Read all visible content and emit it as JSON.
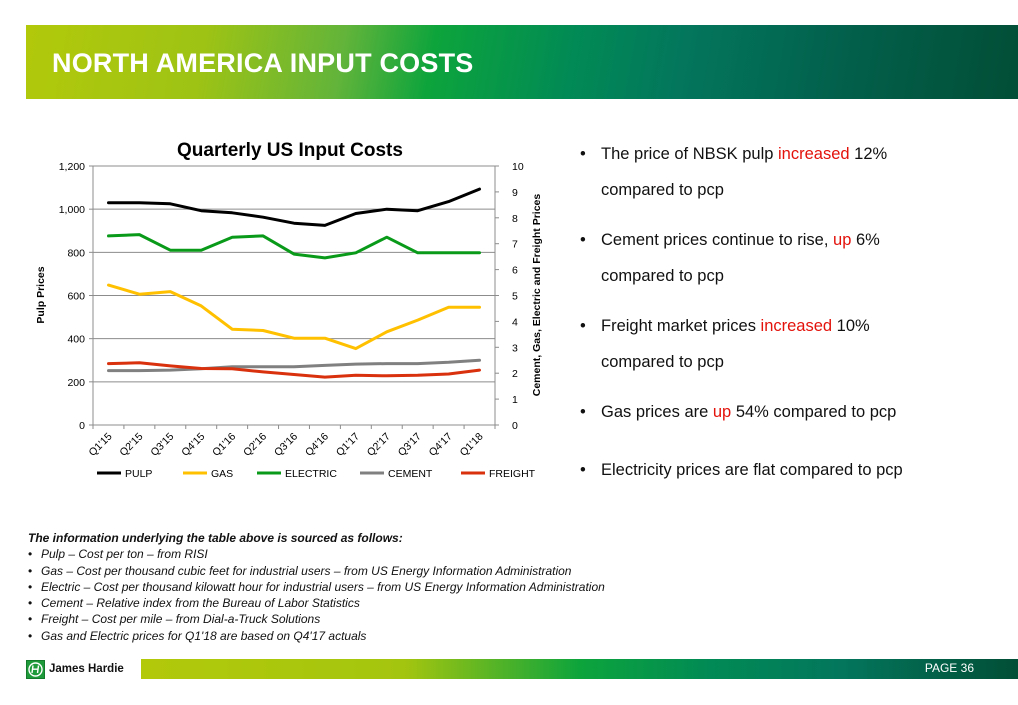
{
  "header": {
    "title": "NORTH AMERICA INPUT COSTS"
  },
  "chart_data": {
    "type": "line",
    "title": "Quarterly US Input Costs",
    "xlabel": "",
    "ylabel": "Pulp Prices",
    "y2label": "Cement, Gas, Electric and Freight Prices",
    "ylim": [
      0,
      1200
    ],
    "y2lim": [
      0,
      10
    ],
    "yticks": [
      "0",
      "200",
      "400",
      "600",
      "800",
      "1,000",
      "1,200"
    ],
    "y2ticks": [
      "0",
      "1",
      "2",
      "3",
      "4",
      "5",
      "6",
      "7",
      "8",
      "9",
      "10"
    ],
    "grid": true,
    "legend": "bottom",
    "categories": [
      "Q1'15",
      "Q2'15",
      "Q3'15",
      "Q4'15",
      "Q1'16",
      "Q2'16",
      "Q3'16",
      "Q4'16",
      "Q1'17",
      "Q2'17",
      "Q3'17",
      "Q4'17",
      "Q1'18"
    ],
    "series": [
      {
        "name": "PULP",
        "axis": "left",
        "color": "#000000",
        "values": [
          1030,
          1030,
          1025,
          993,
          983,
          963,
          935,
          925,
          980,
          1000,
          993,
          1035,
          1093
        ]
      },
      {
        "name": "GAS",
        "axis": "right",
        "color": "#ffc000",
        "values": [
          5.4,
          5.05,
          5.15,
          4.6,
          3.7,
          3.65,
          3.35,
          3.35,
          2.95,
          3.6,
          4.05,
          4.55,
          4.55
        ]
      },
      {
        "name": "ELECTRIC",
        "axis": "right",
        "color": "#0a9a1a",
        "values": [
          7.3,
          7.35,
          6.75,
          6.75,
          7.25,
          7.3,
          6.6,
          6.45,
          6.65,
          7.25,
          6.65,
          6.65,
          6.65
        ]
      },
      {
        "name": "CEMENT",
        "axis": "right",
        "color": "#808080",
        "values": [
          2.1,
          2.1,
          2.12,
          2.17,
          2.25,
          2.25,
          2.25,
          2.3,
          2.35,
          2.37,
          2.37,
          2.42,
          2.5
        ]
      },
      {
        "name": "FREIGHT",
        "axis": "right",
        "color": "#d9300e",
        "values": [
          2.37,
          2.4,
          2.28,
          2.18,
          2.17,
          2.05,
          1.95,
          1.85,
          1.92,
          1.9,
          1.92,
          1.97,
          2.12
        ]
      }
    ]
  },
  "bullets": [
    {
      "pre": "The price of NBSK pulp ",
      "hl": "increased",
      "post": " 12%",
      "line2": "compared to pcp"
    },
    {
      "pre": "Cement prices continue to rise, ",
      "hl": "up",
      "post": " 6%",
      "line2": "compared to pcp"
    },
    {
      "pre": "Freight market prices ",
      "hl": "increased",
      "post": " 10%",
      "line2": "compared to pcp"
    },
    {
      "pre": "Gas prices are ",
      "hl": "up",
      "post": " 54% compared to pcp",
      "line2": ""
    },
    {
      "pre": "Electricity prices are flat compared to pcp",
      "hl": "",
      "post": "",
      "line2": ""
    }
  ],
  "bullet_char": "•",
  "sources": {
    "heading": "The information underlying the table above is sourced as follows:",
    "items": [
      "Pulp – Cost per ton – from RISI",
      "Gas – Cost per thousand cubic feet for industrial users – from US Energy Information Administration",
      "Electric – Cost per thousand kilowatt hour for industrial users – from US Energy Information Administration",
      "Cement – Relative index from the Bureau of Labor Statistics",
      "Freight – Cost per mile – from Dial-a-Truck Solutions",
      "Gas and Electric prices for Q1'18 are based on Q4'17 actuals"
    ]
  },
  "footer": {
    "logo_text": "James Hardie",
    "logo_icon": "jh-logo-icon",
    "page_label": "PAGE  36"
  },
  "colors": {
    "highlight": "#e3120b",
    "brand_green": "#0da43c",
    "brand_dark": "#024e36",
    "brand_lime": "#b2c90a"
  }
}
